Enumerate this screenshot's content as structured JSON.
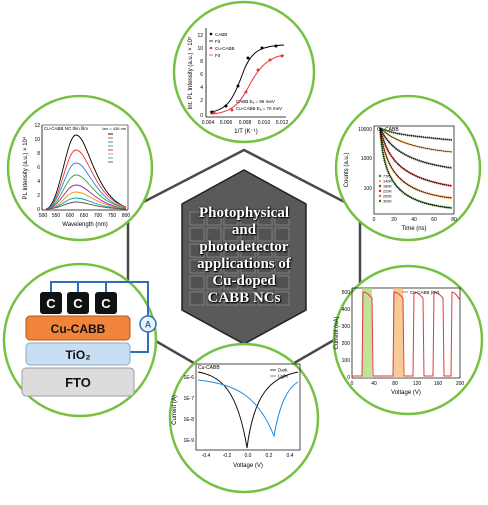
{
  "center": {
    "title_lines": [
      "Photophysical",
      "and",
      "photodetector",
      "applications of",
      "Cu-doped",
      "CABB NCs"
    ]
  },
  "panels": {
    "top": {
      "ylabel": "Int. PL Intensity (a.u.) × 10⁵",
      "xlabel": "1/T (K⁻¹)",
      "yticks": [
        "0",
        "2",
        "4",
        "6",
        "8",
        "10",
        "12"
      ],
      "xticks": [
        "0.004",
        "0.006",
        "0.008",
        "0.010",
        "0.012"
      ],
      "legend": [
        "CABB",
        "Fit",
        "Cu-CABB",
        "Fit"
      ],
      "annotations": [
        "CABB Eₐ = 96 meV",
        "Cu-CABB Eₐ = 70 meV"
      ]
    },
    "left": {
      "title": "Cu-CABB NC thin film",
      "excitation": "λex = 436 nm",
      "ylabel": "PL Intensity (a.u.) × 10⁴",
      "xlabel": "Wavelength (nm)",
      "xticks": [
        "500",
        "550",
        "600",
        "650",
        "700",
        "750",
        "800"
      ],
      "yticks": [
        "0",
        "2",
        "4",
        "6",
        "8",
        "10",
        "12"
      ]
    },
    "right": {
      "title": "Cu-CABB",
      "ylabel": "Counts (a.u.)",
      "xlabel": "Time (ns)",
      "yticks": [
        "10000",
        "1000",
        "100"
      ],
      "xticks": [
        "0",
        "20",
        "40",
        "60",
        "80"
      ],
      "legend": [
        "77K",
        "140K",
        "180K",
        "220K",
        "260K",
        "300K"
      ]
    },
    "device": {
      "contact_label": "C",
      "layers": [
        "Cu-CABB",
        "TiO₂",
        "FTO"
      ],
      "meter": "A"
    },
    "bottom_right": {
      "legend": "Cu-CABB (0V)",
      "ylabel": "Current (nA)",
      "xlabel": "Voltage (V)",
      "yticks": [
        "0",
        "100",
        "200",
        "300",
        "400",
        "500"
      ],
      "xticks": [
        "0",
        "40",
        "80",
        "120",
        "160",
        "200"
      ]
    },
    "bottom_center": {
      "title": "Cu-CABB",
      "ylabel": "Current (A)",
      "xlabel": "Voltage (V)",
      "yticks": [
        "1E-6",
        "1E-7",
        "1E-8",
        "1E-9"
      ],
      "xticks": [
        "-0.4",
        "-0.2",
        "0.0",
        "0.2",
        "0.4"
      ],
      "legend": [
        "Dark",
        "Light"
      ]
    }
  },
  "colors": {
    "circle_border": "#76c043",
    "connector": "#4a4a4a",
    "hex_fill": "#6b6b6b",
    "cu_cabb_layer": "#f0843a",
    "tio2_layer": "#c8dff3",
    "fto_layer": "#dcdcdc",
    "wire": "#2f6db5"
  }
}
